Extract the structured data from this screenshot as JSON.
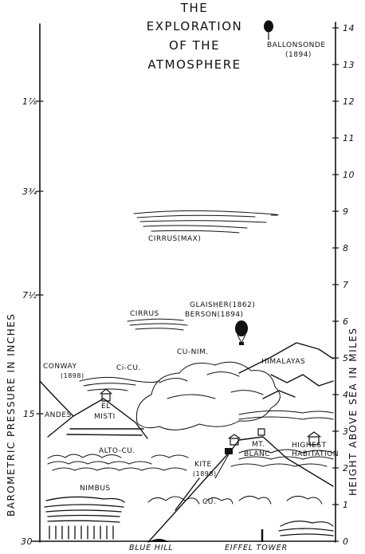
{
  "title": {
    "line1": "THE",
    "line2": "EXPLORATION",
    "line3": "OF THE",
    "line4": "ATMOSPHERE"
  },
  "right_axis": {
    "label": "HEIGHT ABOVE SEA IN MILES",
    "ticks": [
      "0",
      "1",
      "2",
      "3",
      "4",
      "5",
      "6",
      "7",
      "8",
      "9",
      "10",
      "11",
      "12",
      "13",
      "14"
    ]
  },
  "left_axis": {
    "label": "BAROMETRIC PRESSURE IN INCHES",
    "ticks": [
      "1⅞",
      "3¾",
      "7½",
      "15",
      "30"
    ]
  },
  "labels": {
    "ballonsonde": "BALLONSONDE",
    "ballonsonde_year": "(1894)",
    "cirrus_max": "CIRRUS(MAX)",
    "cirrus": "CIRRUS",
    "glaisher": "GLAISHER(1862)",
    "berson": "BERSON(1894)",
    "cu_nim": "CU-NIM.",
    "himalayas": "HIMALAYAS",
    "conway": "CONWAY",
    "conway_year": "(1898)",
    "ci_cu": "Ci-CU.",
    "andes": "ANDES",
    "el": "EL",
    "misti": "MISTI",
    "mt": "MT.",
    "blanc": "BLANC",
    "highest": "HIGHEST",
    "habitation": "HABITATION",
    "alto_cu": "ALTO-CU.",
    "kite": "KITE",
    "kite_year": "(1898)",
    "nimbus": "NIMBUS",
    "cu": "CU.",
    "blue_hill": "BLUE HILL",
    "eiffel_tower": "EIFFEL TOWER"
  }
}
